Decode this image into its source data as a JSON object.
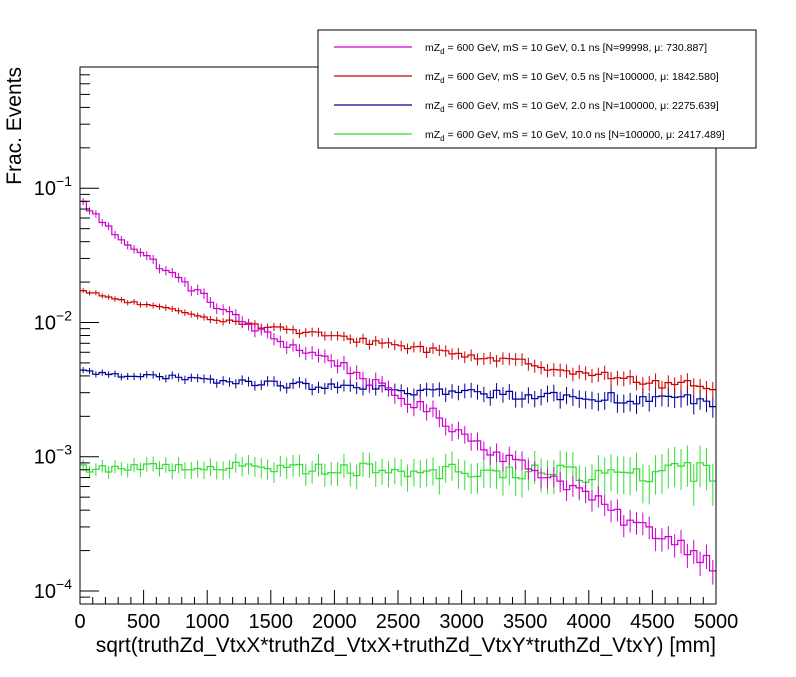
{
  "chart_data": {
    "type": "line",
    "style": "step-histogram-with-error-bars",
    "xlabel": "sqrt(truthZd_VtxX*truthZd_VtxX+truthZd_VtxY*truthZd_VtxY) [mm]",
    "ylabel": "Frac. Events",
    "x_range": [
      0,
      5000
    ],
    "y_range": [
      8e-05,
      0.8
    ],
    "y_scale": "log",
    "x_ticks": [
      0,
      500,
      1000,
      1500,
      2000,
      2500,
      3000,
      3500,
      4000,
      4500,
      5000
    ],
    "x_tick_labels": [
      "0",
      "500",
      "1000",
      "1500",
      "2000",
      "2500",
      "3000",
      "3500",
      "4000",
      "4500",
      "5000"
    ],
    "y_ticks": [
      0.0001,
      0.001,
      0.01,
      0.1
    ],
    "y_tick_base": "10",
    "y_tick_exponents": [
      "−4",
      "−3",
      "−2",
      "−1"
    ],
    "n_bins": 100,
    "bin_width": 50,
    "legend_position": "top-right",
    "series": [
      {
        "name_main": "mZ",
        "name_sub": "d",
        "name_rest": " = 600 GeV, mS = 10 GeV, 0.1 ns [N=99998, μ: 730.887]",
        "color": "#cc00cc",
        "anchors_x": [
          25,
          250,
          500,
          750,
          1000,
          1250,
          1500,
          1750,
          2000,
          2250,
          2500,
          2750,
          3000,
          3250,
          3500,
          3750,
          4000,
          4250,
          4500,
          4750,
          4975
        ],
        "anchors_y": [
          0.078,
          0.048,
          0.032,
          0.022,
          0.015,
          0.0105,
          0.0078,
          0.0062,
          0.0052,
          0.0038,
          0.0028,
          0.0022,
          0.0015,
          0.0011,
          0.00085,
          0.00068,
          0.00052,
          0.00035,
          0.00028,
          0.00022,
          0.00016
        ],
        "fluctuation": 0.05,
        "err_scale": 0.06
      },
      {
        "name_main": "mZ",
        "name_sub": "d",
        "name_rest": " = 600 GeV, mS = 10 GeV, 0.5 ns [N=100000, μ: 1842.580]",
        "color": "#cc0000",
        "anchors_x": [
          25,
          500,
          1000,
          1500,
          2000,
          2500,
          3000,
          3500,
          4000,
          4500,
          4975
        ],
        "anchors_y": [
          0.017,
          0.0135,
          0.011,
          0.0092,
          0.0078,
          0.0068,
          0.0058,
          0.005,
          0.0042,
          0.0035,
          0.0034
        ],
        "fluctuation": 0.03,
        "err_scale": 0.04
      },
      {
        "name_main": "mZ",
        "name_sub": "d",
        "name_rest": " = 600 GeV, mS = 10 GeV, 2.0 ns [N=100000, μ: 2275.639]",
        "color": "#000099",
        "anchors_x": [
          25,
          1000,
          2000,
          3000,
          4000,
          4975
        ],
        "anchors_y": [
          0.0043,
          0.0037,
          0.0033,
          0.003,
          0.0028,
          0.0026
        ],
        "fluctuation": 0.04,
        "err_scale": 0.05
      },
      {
        "name_main": "mZ",
        "name_sub": "d",
        "name_rest": " = 600 GeV, mS = 10 GeV, 10.0 ns [N=100000, μ: 2417.489]",
        "color": "#33dd33",
        "anchors_x": [
          25,
          1000,
          2000,
          3000,
          4000,
          4975
        ],
        "anchors_y": [
          0.00082,
          0.00085,
          0.00082,
          0.00078,
          0.00075,
          0.00078
        ],
        "fluctuation": 0.07,
        "err_scale": 0.1
      }
    ]
  }
}
